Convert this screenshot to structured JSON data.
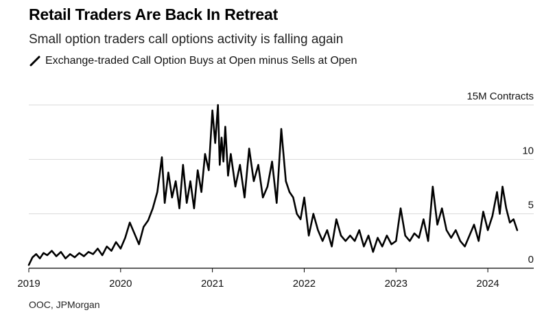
{
  "header": {
    "title": "Retail Traders Are Back In Retreat",
    "subtitle": "Small option traders call options activity is falling again"
  },
  "legend": {
    "series_label": "Exchange-traded Call Option Buys at Open minus Sells at Open",
    "series_icon": "diagonal-line-icon"
  },
  "footer": {
    "source": "OOC, JPMorgan"
  },
  "colors": {
    "line": "#000000",
    "grid": "#d9d9d9",
    "axis": "#000000"
  },
  "chart_data": {
    "type": "line",
    "title": "Retail Traders Are Back In Retreat",
    "subtitle": "Small option traders call options activity is falling again",
    "ylabel_unit": "15M Contracts",
    "ylim": [
      0,
      15
    ],
    "xlim": [
      2019.0,
      2024.5
    ],
    "yticks": [
      0,
      5,
      10,
      15
    ],
    "ytick_labels": [
      "0",
      "5",
      "10",
      "15M Contracts"
    ],
    "xticks": [
      2019,
      2020,
      2021,
      2022,
      2023,
      2024
    ],
    "xtick_labels": [
      "2019",
      "2020",
      "2021",
      "2022",
      "2023",
      "2024"
    ],
    "grid": true,
    "legend_position": "top-left",
    "series": [
      {
        "name": "Exchange-traded Call Option Buys at Open minus Sells at Open",
        "x": [
          2019.0,
          2019.04,
          2019.08,
          2019.12,
          2019.16,
          2019.2,
          2019.25,
          2019.3,
          2019.35,
          2019.4,
          2019.45,
          2019.5,
          2019.55,
          2019.6,
          2019.65,
          2019.7,
          2019.75,
          2019.8,
          2019.85,
          2019.9,
          2019.95,
          2020.0,
          2020.05,
          2020.1,
          2020.15,
          2020.2,
          2020.25,
          2020.3,
          2020.35,
          2020.4,
          2020.45,
          2020.48,
          2020.52,
          2020.56,
          2020.6,
          2020.64,
          2020.68,
          2020.72,
          2020.76,
          2020.8,
          2020.84,
          2020.88,
          2020.92,
          2020.96,
          2021.0,
          2021.03,
          2021.06,
          2021.08,
          2021.1,
          2021.12,
          2021.14,
          2021.17,
          2021.2,
          2021.25,
          2021.3,
          2021.35,
          2021.4,
          2021.45,
          2021.5,
          2021.55,
          2021.6,
          2021.65,
          2021.7,
          2021.75,
          2021.8,
          2021.84,
          2021.88,
          2021.92,
          2021.96,
          2022.0,
          2022.05,
          2022.1,
          2022.15,
          2022.2,
          2022.25,
          2022.3,
          2022.35,
          2022.4,
          2022.45,
          2022.5,
          2022.55,
          2022.6,
          2022.65,
          2022.7,
          2022.75,
          2022.8,
          2022.85,
          2022.9,
          2022.95,
          2023.0,
          2023.05,
          2023.1,
          2023.15,
          2023.2,
          2023.25,
          2023.3,
          2023.35,
          2023.4,
          2023.45,
          2023.5,
          2023.55,
          2023.6,
          2023.65,
          2023.7,
          2023.75,
          2023.8,
          2023.85,
          2023.9,
          2023.95,
          2024.0,
          2024.05,
          2024.1,
          2024.13,
          2024.16,
          2024.2,
          2024.24,
          2024.28,
          2024.32
        ],
        "values": [
          0.3,
          1.0,
          1.3,
          0.9,
          1.4,
          1.2,
          1.6,
          1.1,
          1.5,
          0.9,
          1.3,
          1.0,
          1.4,
          1.1,
          1.5,
          1.3,
          1.8,
          1.2,
          2.0,
          1.6,
          2.4,
          1.8,
          2.8,
          4.2,
          3.2,
          2.2,
          3.8,
          4.4,
          5.5,
          7.0,
          10.2,
          6.0,
          8.8,
          6.5,
          8.0,
          5.5,
          9.5,
          6.0,
          8.0,
          5.5,
          9.0,
          7.0,
          10.5,
          9.0,
          14.5,
          11.5,
          15.0,
          9.5,
          12.0,
          9.8,
          13.0,
          8.5,
          10.5,
          7.5,
          9.5,
          6.5,
          11.0,
          8.0,
          9.5,
          6.5,
          7.5,
          9.8,
          6.0,
          12.8,
          8.0,
          7.0,
          6.5,
          5.0,
          4.5,
          6.5,
          3.0,
          5.0,
          3.5,
          2.5,
          3.5,
          2.0,
          4.5,
          3.0,
          2.5,
          3.0,
          2.5,
          3.5,
          2.0,
          3.0,
          1.5,
          2.8,
          2.0,
          3.0,
          2.2,
          2.5,
          5.5,
          3.0,
          2.5,
          3.2,
          2.8,
          4.5,
          2.5,
          7.5,
          4.0,
          5.5,
          3.5,
          2.8,
          3.5,
          2.5,
          2.0,
          3.0,
          4.0,
          2.5,
          5.2,
          3.5,
          4.8,
          7.0,
          5.0,
          7.5,
          5.5,
          4.2,
          4.5,
          3.5
        ]
      }
    ]
  }
}
